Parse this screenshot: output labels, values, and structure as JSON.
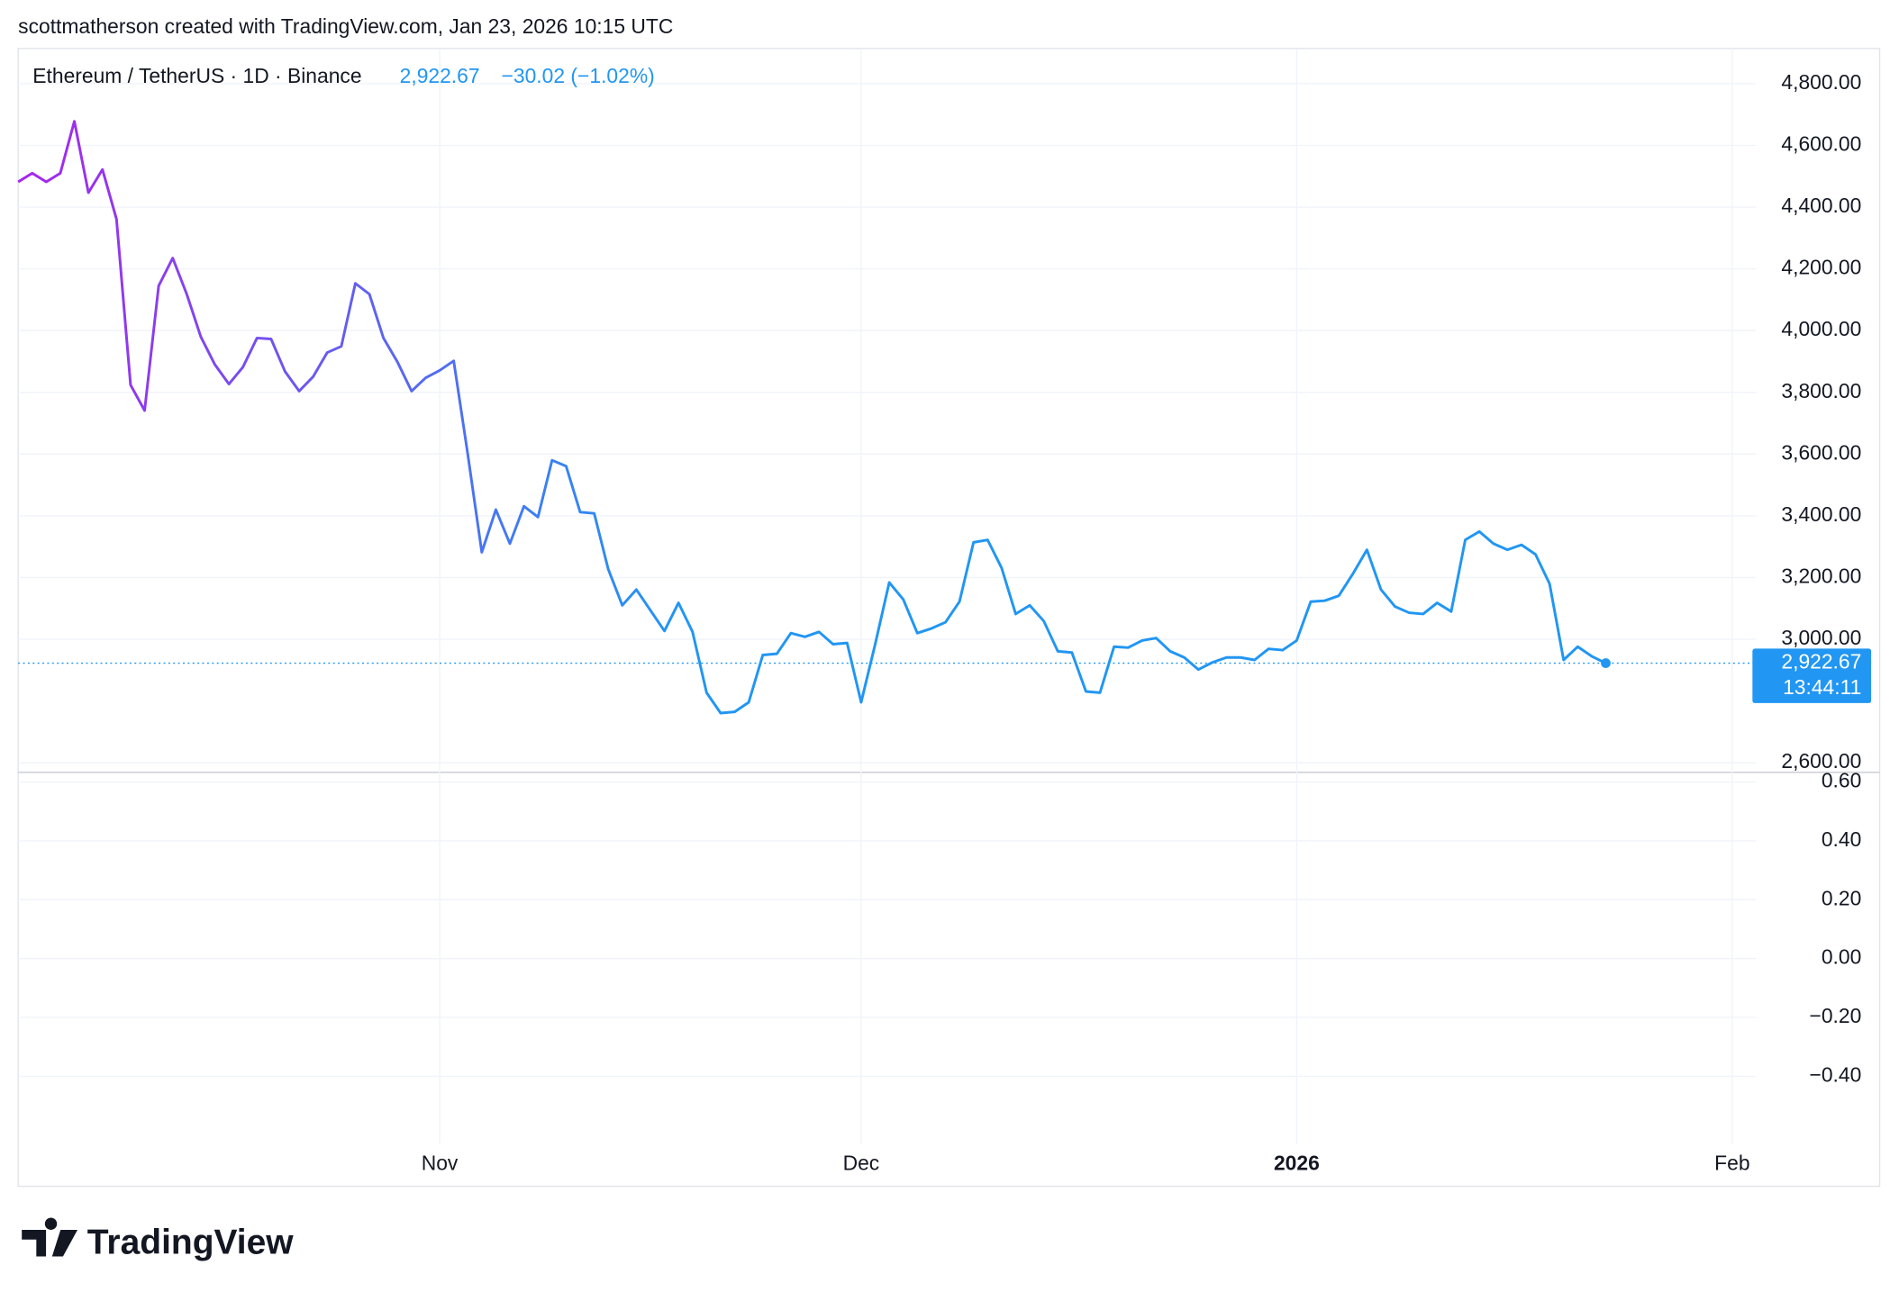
{
  "header": {
    "text": "scottmatherson created with TradingView.com, Jan 23, 2026 10:15 UTC"
  },
  "chart_data": {
    "type": "line",
    "title": "Ethereum / TetherUS · 1D · Binance",
    "price": "2,922.67",
    "change": "−30.02 (−1.02%)",
    "countdown": "13:44:11",
    "series": [
      {
        "color": "#2196f3",
        "gradient_color": "#a626ee",
        "values": [
          4482,
          4510,
          4482,
          4510,
          4678,
          4447,
          4522,
          4361,
          3824,
          3741,
          4145,
          4235,
          4118,
          3980,
          3890,
          3827,
          3882,
          3976,
          3973,
          3867,
          3804,
          3851,
          3929,
          3949,
          4153,
          4118,
          3976,
          3898,
          3804,
          3847,
          3871,
          3902,
          3600,
          3282,
          3420,
          3310,
          3431,
          3396,
          3580,
          3561,
          3412,
          3408,
          3227,
          3110,
          3161,
          3094,
          3027,
          3118,
          3024,
          2827,
          2761,
          2765,
          2796,
          2949,
          2953,
          3020,
          3008,
          3024,
          2984,
          2988,
          2796,
          2984,
          3184,
          3129,
          3020,
          3035,
          3055,
          3122,
          3314,
          3322,
          3231,
          3082,
          3110,
          3059,
          2961,
          2957,
          2831,
          2827,
          2976,
          2973,
          2996,
          3004,
          2961,
          2941,
          2902,
          2925,
          2941,
          2941,
          2933,
          2969,
          2965,
          2996,
          3122,
          3125,
          3141,
          3212,
          3290,
          3161,
          3106,
          3086,
          3082,
          3118,
          3090,
          3322,
          3349,
          3310,
          3290,
          3306,
          3275,
          3180,
          2933,
          2976,
          2945,
          2922.67
        ]
      }
    ],
    "xlim": [
      0,
      123.7
    ],
    "xticks": [
      {
        "value": 30,
        "label": "Nov"
      },
      {
        "value": 60,
        "label": "Dec"
      },
      {
        "value": 91,
        "label": "2026"
      },
      {
        "value": 122,
        "label": "Feb"
      }
    ],
    "ylim": [
      2569,
      4914
    ],
    "yticks": [
      {
        "value": 2600,
        "label": "2,600.00"
      },
      {
        "value": 3000,
        "label": "3,000.00"
      },
      {
        "value": 3200,
        "label": "3,200.00"
      },
      {
        "value": 3400,
        "label": "3,400.00"
      },
      {
        "value": 3600,
        "label": "3,600.00"
      },
      {
        "value": 3800,
        "label": "3,800.00"
      },
      {
        "value": 4000,
        "label": "4,000.00"
      },
      {
        "value": 4200,
        "label": "4,200.00"
      },
      {
        "value": 4400,
        "label": "4,400.00"
      },
      {
        "value": 4600,
        "label": "4,600.00"
      },
      {
        "value": 4800,
        "label": "4,800.00"
      }
    ],
    "grid": true,
    "lower_pane": {
      "ylim": [
        -0.63,
        0.633
      ],
      "yticks": [
        {
          "value": 0.6,
          "label": "0.60"
        },
        {
          "value": 0.4,
          "label": "0.40"
        },
        {
          "value": 0.2,
          "label": "0.20"
        },
        {
          "value": 0,
          "label": "0.00"
        },
        {
          "value": -0.2,
          "label": "−0.20"
        },
        {
          "value": -0.4,
          "label": "−0.40"
        }
      ]
    }
  },
  "footer": {
    "logo": "TradingView"
  }
}
